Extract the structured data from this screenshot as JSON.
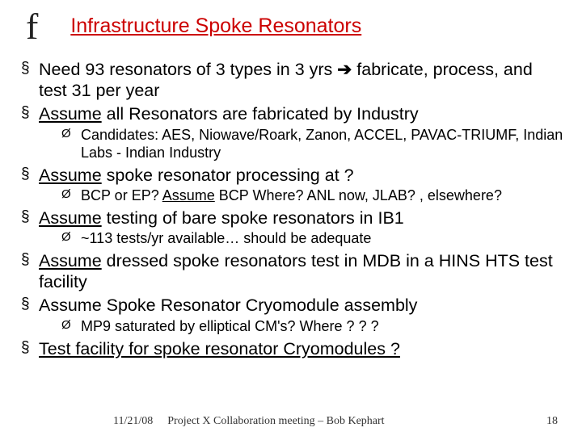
{
  "logo": "f",
  "title": "Infrastructure Spoke Resonators",
  "bullets": {
    "b1a": "Need 93 resonators of 3 types in 3 yrs ",
    "b1arrow": "➔",
    "b1b": " fabricate, process, and test 31 per year",
    "b2_u": "Assume",
    "b2_r": " all Resonators are fabricated by Industry",
    "b2_sub": "Candidates: AES, Niowave/Roark, Zanon, ACCEL, PAVAC-TRIUMF, Indian Labs - Indian Industry",
    "b3_u": "Assume",
    "b3_r": " spoke resonator processing at ?",
    "b3_sub_a": "BCP or EP? ",
    "b3_sub_u": "Assume",
    "b3_sub_b": " BCP Where? ANL now, JLAB? , elsewhere?",
    "b4_u": "Assume",
    "b4_r": " testing of bare spoke resonators in IB1",
    "b4_sub": "~113 tests/yr available… should be adequate",
    "b5_u": "Assume",
    "b5_r": " dressed spoke resonators test in MDB in a HINS HTS test facility",
    "b6": "Assume Spoke Resonator Cryomodule assembly",
    "b6_sub": "MP9 saturated by elliptical CM's?  Where ? ? ?",
    "b7": "Test facility for spoke resonator Cryomodules ?"
  },
  "footer": {
    "date": "11/21/08",
    "text": "Project X Collaboration meeting – Bob Kephart",
    "page": "18"
  },
  "colors": {
    "title": "#cc0000",
    "text": "#000000",
    "bg": "#ffffff"
  }
}
